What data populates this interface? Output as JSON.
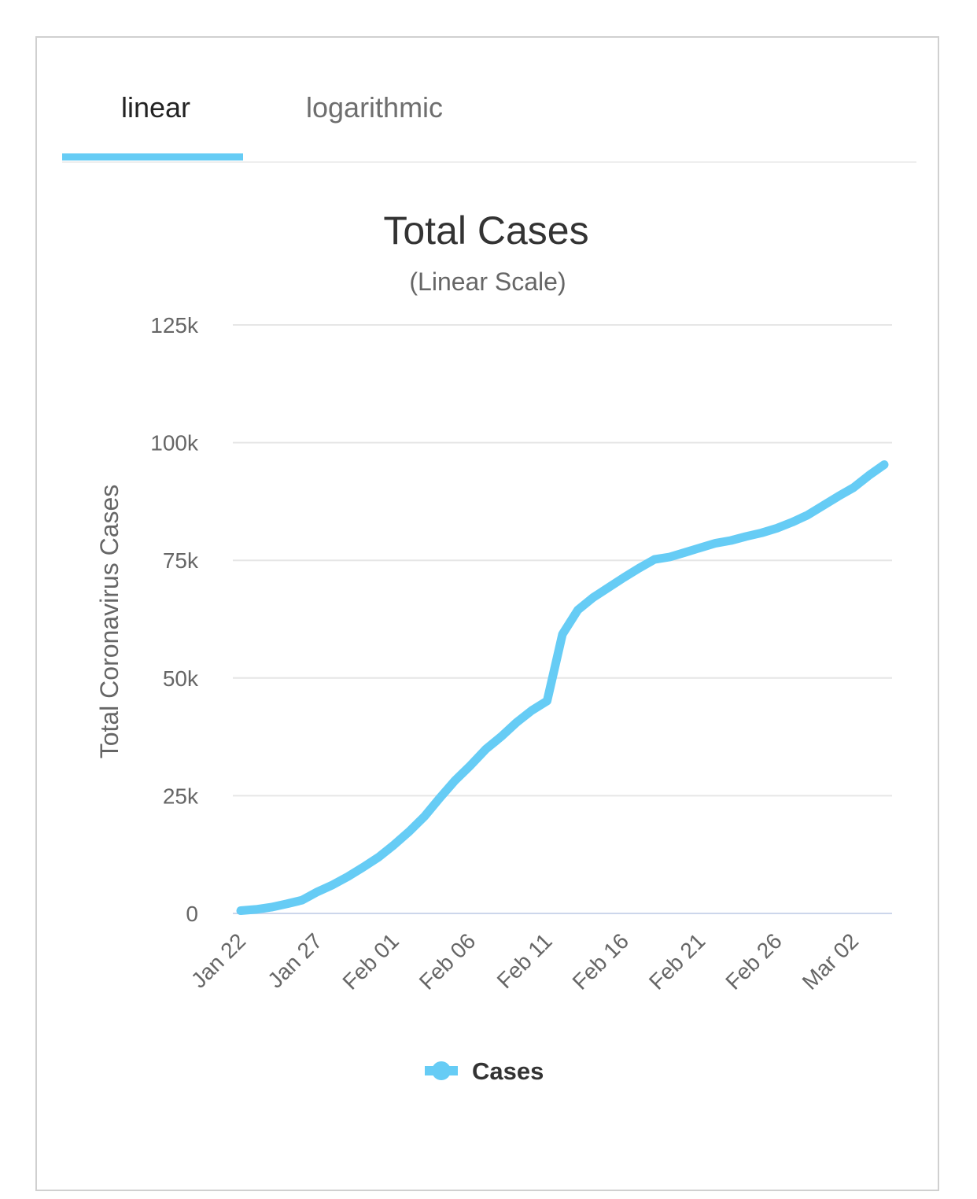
{
  "tabs": [
    {
      "label": "linear",
      "active": true
    },
    {
      "label": "logarithmic",
      "active": false
    }
  ],
  "colors": {
    "accent": "#66ccf5",
    "series": "#66ccf5"
  },
  "chart_data": {
    "type": "line",
    "title": "Total Cases",
    "subtitle": "(Linear Scale)",
    "xlabel": "",
    "ylabel": "Total Coronavirus Cases",
    "ylim": [
      0,
      125000
    ],
    "yticks": [
      0,
      25000,
      50000,
      75000,
      100000,
      125000
    ],
    "ytick_labels": [
      "0",
      "25k",
      "50k",
      "75k",
      "100k",
      "125k"
    ],
    "xtick_labels": [
      "Jan 22",
      "Jan 27",
      "Feb 01",
      "Feb 06",
      "Feb 11",
      "Feb 16",
      "Feb 21",
      "Feb 26",
      "Mar 02"
    ],
    "grid": true,
    "legend": "bottom",
    "categories": [
      "Jan 22",
      "Jan 23",
      "Jan 24",
      "Jan 25",
      "Jan 26",
      "Jan 27",
      "Jan 28",
      "Jan 29",
      "Jan 30",
      "Jan 31",
      "Feb 01",
      "Feb 02",
      "Feb 03",
      "Feb 04",
      "Feb 05",
      "Feb 06",
      "Feb 07",
      "Feb 08",
      "Feb 09",
      "Feb 10",
      "Feb 11",
      "Feb 12",
      "Feb 13",
      "Feb 14",
      "Feb 15",
      "Feb 16",
      "Feb 17",
      "Feb 18",
      "Feb 19",
      "Feb 20",
      "Feb 21",
      "Feb 22",
      "Feb 23",
      "Feb 24",
      "Feb 25",
      "Feb 26",
      "Feb 27",
      "Feb 28",
      "Feb 29",
      "Mar 01",
      "Mar 02",
      "Mar 03",
      "Mar 04"
    ],
    "series": [
      {
        "name": "Cases",
        "values": [
          580,
          845,
          1317,
          2015,
          2800,
          4581,
          6058,
          7813,
          9821,
          11948,
          14551,
          17389,
          20628,
          24553,
          28276,
          31439,
          34876,
          37552,
          40553,
          43099,
          45134,
          59287,
          64438,
          67100,
          69197,
          71329,
          73332,
          75184,
          75700,
          76677,
          77673,
          78651,
          79205,
          80087,
          80828,
          81820,
          83112,
          84615,
          86604,
          88585,
          90443,
          93016,
          95314
        ]
      }
    ]
  }
}
